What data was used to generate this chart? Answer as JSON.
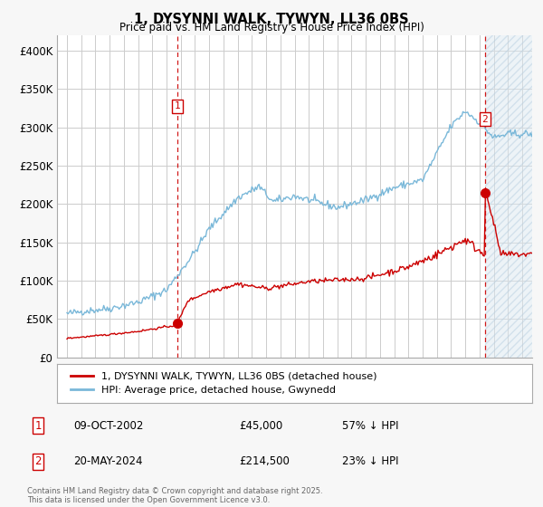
{
  "title": "1, DYSYNNI WALK, TYWYN, LL36 0BS",
  "subtitle": "Price paid vs. HM Land Registry's House Price Index (HPI)",
  "ylim": [
    0,
    420000
  ],
  "yticks": [
    0,
    50000,
    100000,
    150000,
    200000,
    250000,
    300000,
    350000,
    400000
  ],
  "ytick_labels": [
    "£0",
    "£50K",
    "£100K",
    "£150K",
    "£200K",
    "£250K",
    "£300K",
    "£350K",
    "£400K"
  ],
  "hpi_color": "#7ab8d9",
  "price_color": "#cc0000",
  "vline_color": "#cc0000",
  "transaction1_x": 2002.77,
  "transaction1_y": 45000,
  "transaction2_x": 2024.38,
  "transaction2_y": 214500,
  "legend_label1": "1, DYSYNNI WALK, TYWYN, LL36 0BS (detached house)",
  "legend_label2": "HPI: Average price, detached house, Gwynedd",
  "table_row1_label": "1",
  "table_row1_date": "09-OCT-2002",
  "table_row1_price": "£45,000",
  "table_row1_hpi": "57% ↓ HPI",
  "table_row2_label": "2",
  "table_row2_date": "20-MAY-2024",
  "table_row2_price": "£214,500",
  "table_row2_hpi": "23% ↓ HPI",
  "footer": "Contains HM Land Registry data © Crown copyright and database right 2025.\nThis data is licensed under the Open Government Licence v3.0.",
  "background_color": "#f7f7f7",
  "plot_bg_color": "#ffffff",
  "grid_color": "#cccccc",
  "hatch_color": "#d0d8e8",
  "xlim_left": 1994.3,
  "xlim_right": 2027.7
}
